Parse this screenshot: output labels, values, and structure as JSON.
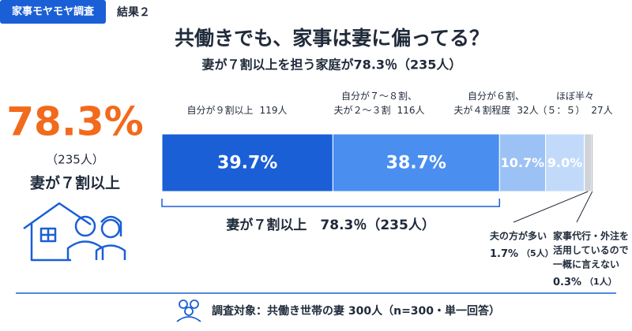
{
  "chart_data": {
    "type": "stacked_bar",
    "tag": "家事モヤモヤ調査",
    "section": "結果２",
    "title": "共働きでも、家事は妻に偏ってる？",
    "subtitle": "妻が７割以上を担う家庭が78.3％（235人）",
    "highlight": {
      "value_label": "78.3%",
      "count_label": "（235人）",
      "caption": "妻が７割以上"
    },
    "bracket_label": "妻が７割以上　78.3％（235人）",
    "xlim": [
      0,
      100
    ],
    "series": [
      {
        "name_lines": [
          "自分が９割以上"
        ],
        "count_label": "119人",
        "values": [
          39.7
        ],
        "value_labels": [
          "39.7%"
        ],
        "color": "#1a5fd6"
      },
      {
        "name_lines": [
          "自分が７〜８割、",
          "夫が２〜３割"
        ],
        "count_label": "116人",
        "values": [
          38.7
        ],
        "value_labels": [
          "38.7%"
        ],
        "color": "#4a8ef0"
      },
      {
        "name_lines": [
          "自分が６割、",
          "夫が４割程度"
        ],
        "count_label": "32人",
        "values": [
          10.7
        ],
        "value_labels": [
          "10.7%"
        ],
        "color": "#9cc2f5"
      },
      {
        "name_lines": [
          "ほぼ半々",
          "（５：５）"
        ],
        "count_label": "27人",
        "values": [
          9.0
        ],
        "value_labels": [
          "9.0%"
        ],
        "color": "#c2dafa"
      },
      {
        "name_lines": [
          "夫の方が多い"
        ],
        "count_label": "（5人）",
        "values": [
          1.7
        ],
        "value_labels": [
          "1.7%"
        ],
        "color": "#cfd3d8"
      },
      {
        "name_lines": [
          "家事代行・外注を",
          "活用しているので",
          "一概に言えない"
        ],
        "count_label": "（1人）",
        "values": [
          0.3
        ],
        "value_labels": [
          "0.3%"
        ],
        "color": "#858a90"
      }
    ],
    "footer": "調査対象：共働き世帯の妻 300人（n=300・単一回答）"
  }
}
